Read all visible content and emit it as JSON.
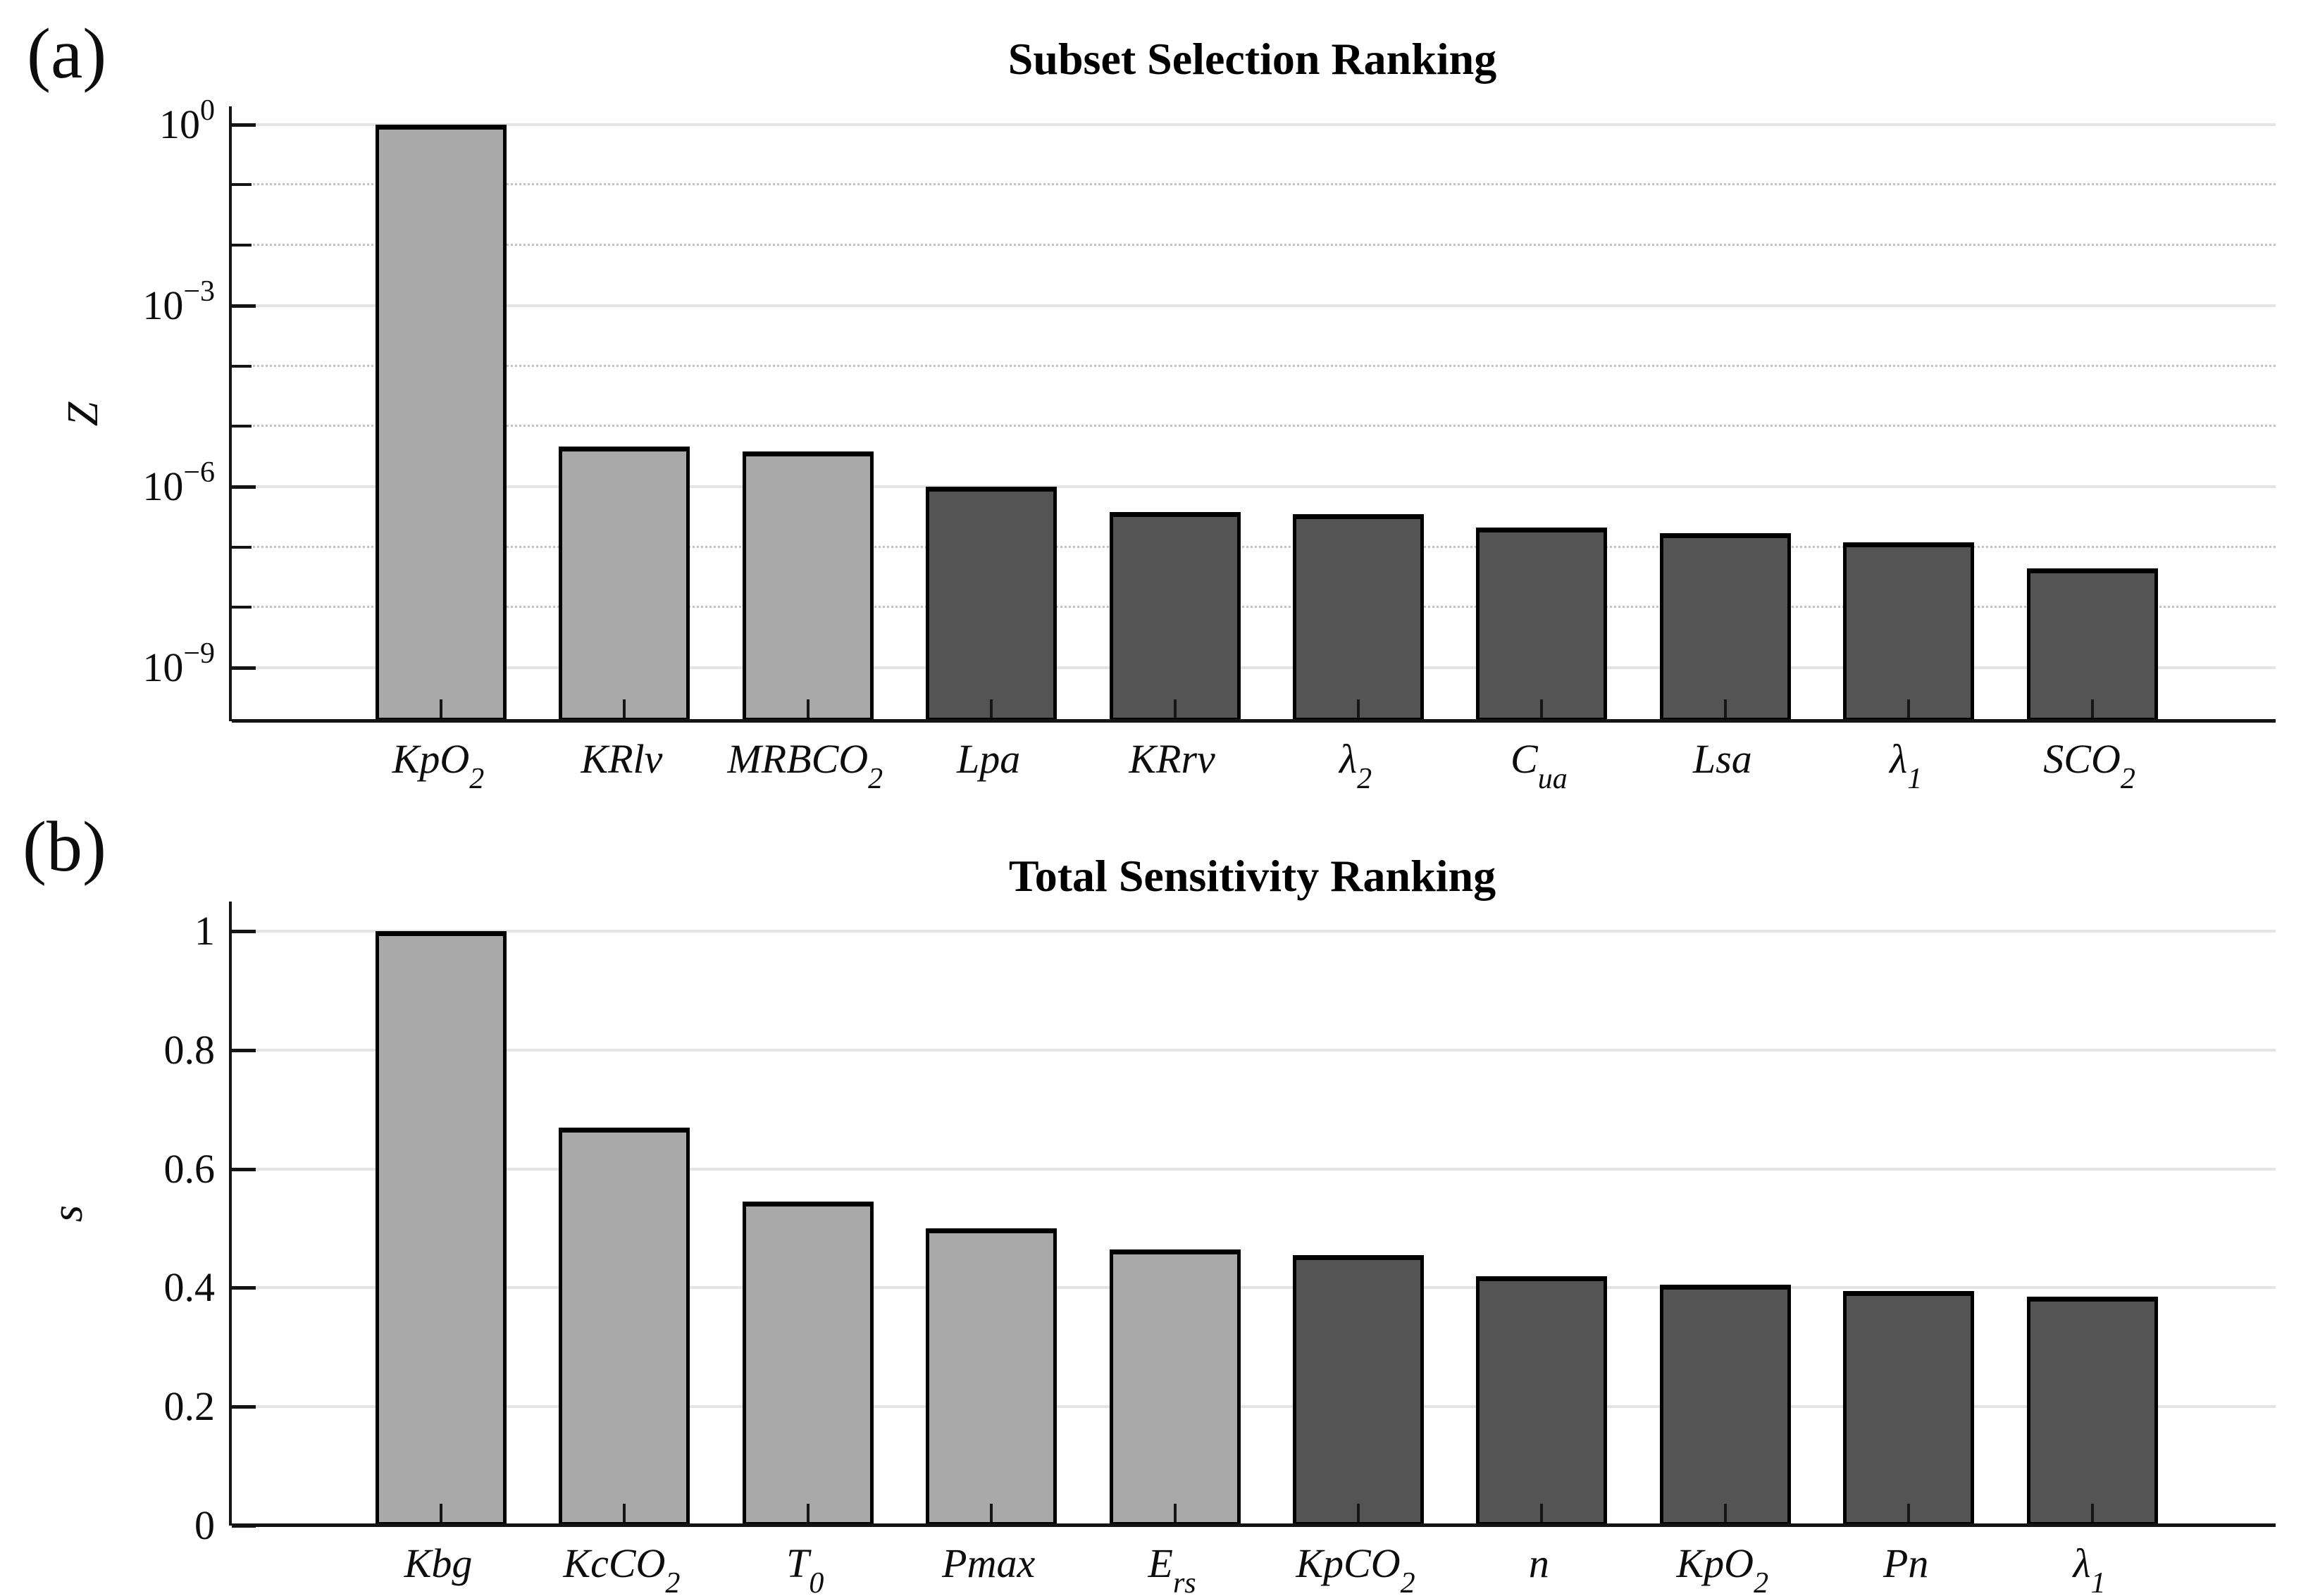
{
  "figure": {
    "background": "#ffffff",
    "text_color": "#0d0d0d",
    "axis_color": "#141414",
    "grid_major_color": "#e4e4e4",
    "grid_minor_color": "#c4c4c4"
  },
  "chart_data": [
    {
      "type": "bar",
      "panel_tag": "(a)",
      "title": "Subset Selection Ranking",
      "ylabel": "Z",
      "xlabel": "",
      "yscale": "log",
      "ylim": [
        1.3e-10,
        2.0
      ],
      "ytick_labels": [
        "10^0",
        "10^-3",
        "10^-6",
        "10^-9"
      ],
      "ytick_exponents": [
        0,
        -3,
        -6,
        -9
      ],
      "minor_grid_exponents": [
        -1,
        -2,
        -4,
        -5,
        -7,
        -8
      ],
      "grid": "on",
      "legend": "none",
      "categories": [
        "KpO_2",
        "KRlv",
        "MRBCO_2",
        "Lpa",
        "KRrv",
        "lambda_2",
        "C_ua",
        "Lsa",
        "lambda_1",
        "SCO_2"
      ],
      "categories_rich": [
        {
          "base": "KpO",
          "sub": "2"
        },
        {
          "base": "KRlv",
          "sub": ""
        },
        {
          "base": "MRBCO",
          "sub": "2"
        },
        {
          "base": "Lpa",
          "sub": ""
        },
        {
          "base": "KRrv",
          "sub": ""
        },
        {
          "base": "λ",
          "sub": "2"
        },
        {
          "base": "C",
          "sub": "ua"
        },
        {
          "base": "Lsa",
          "sub": ""
        },
        {
          "base": "λ",
          "sub": "1"
        },
        {
          "base": "SCO",
          "sub": "2"
        }
      ],
      "values": [
        1,
        4.6e-06,
        3.8e-06,
        1e-06,
        3.8e-07,
        3.5e-07,
        2.1e-07,
        1.7e-07,
        1.2e-07,
        4.4e-08
      ],
      "bar_style": {
        "light_fill": "#a9a9a9",
        "dark_fill": "#545454",
        "edge": "#000000",
        "light_count": 3
      }
    },
    {
      "type": "bar",
      "panel_tag": "(b)",
      "title": "Total Sensitivity Ranking",
      "ylabel": "s",
      "xlabel": "",
      "yscale": "linear",
      "ylim": [
        0,
        1.05
      ],
      "yticks": [
        0,
        0.2,
        0.4,
        0.6,
        0.8,
        1
      ],
      "ytick_labels": [
        "0",
        "0.2",
        "0.4",
        "0.6",
        "0.8",
        "1"
      ],
      "grid": "on",
      "legend": "none",
      "categories": [
        "Kbg",
        "KcCO_2",
        "T_0",
        "Pmax",
        "E_rs",
        "KpCO_2",
        "n",
        "KpO_2",
        "Pn",
        "lambda_1"
      ],
      "categories_rich": [
        {
          "base": "Kbg",
          "sub": ""
        },
        {
          "base": "KcCO",
          "sub": "2"
        },
        {
          "base": "T",
          "sub": "0"
        },
        {
          "base": "Pmax",
          "sub": ""
        },
        {
          "base": "E",
          "sub": "rs"
        },
        {
          "base": "KpCO",
          "sub": "2"
        },
        {
          "base": "n",
          "sub": ""
        },
        {
          "base": "KpO",
          "sub": "2"
        },
        {
          "base": "Pn",
          "sub": ""
        },
        {
          "base": "λ",
          "sub": "1"
        }
      ],
      "values": [
        1.0,
        0.67,
        0.545,
        0.5,
        0.465,
        0.455,
        0.42,
        0.405,
        0.395,
        0.385
      ],
      "bar_style": {
        "light_fill": "#a9a9a9",
        "dark_fill": "#545454",
        "edge": "#000000",
        "light_count": 5
      }
    }
  ]
}
